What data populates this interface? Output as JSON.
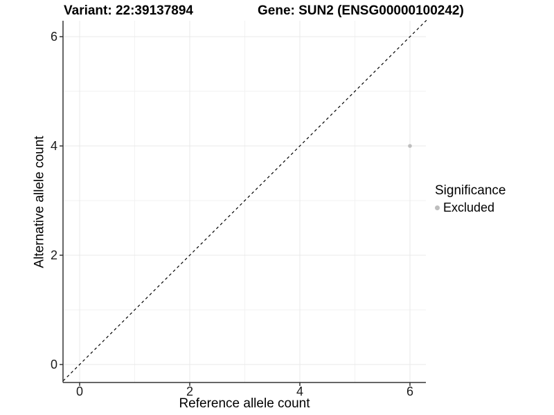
{
  "header": {
    "variant_title": "Variant: 22:39137894",
    "gene_title": "Gene: SUN2 (ENSG00000100242)"
  },
  "chart_data": {
    "type": "scatter",
    "xlabel": "Reference allele count",
    "ylabel": "Alternative allele count",
    "xlim": [
      -0.3,
      6.3
    ],
    "ylim": [
      -0.3,
      6.3
    ],
    "x_ticks": [
      0,
      2,
      4,
      6
    ],
    "y_ticks": [
      0,
      2,
      4,
      6
    ],
    "x_minor": [
      1,
      3,
      5
    ],
    "y_minor": [
      1,
      3,
      5
    ],
    "grid": "major+minor",
    "equal_aspect": true,
    "reference_line": {
      "style": "dashed",
      "from": [
        -0.3,
        -0.3
      ],
      "to": [
        6.3,
        6.3
      ],
      "color": "#000000"
    },
    "series": [
      {
        "name": "Excluded",
        "marker": "circle",
        "color": "#bebebe",
        "points": [
          [
            6,
            4
          ]
        ]
      }
    ],
    "legend": {
      "title": "Significance",
      "position": "right",
      "entries": [
        {
          "label": "Excluded",
          "color": "#bebebe",
          "marker": "circle"
        }
      ]
    }
  },
  "colors": {
    "background": "#ffffff",
    "grid_major": "#e8e8e8",
    "grid_minor": "#f2f2f2",
    "axis_line": "#333333",
    "tick_mark": "#333333",
    "tick_label": "#1a1a1a",
    "point": "#bebebe",
    "reference_line": "#000000",
    "text": "#000000"
  }
}
